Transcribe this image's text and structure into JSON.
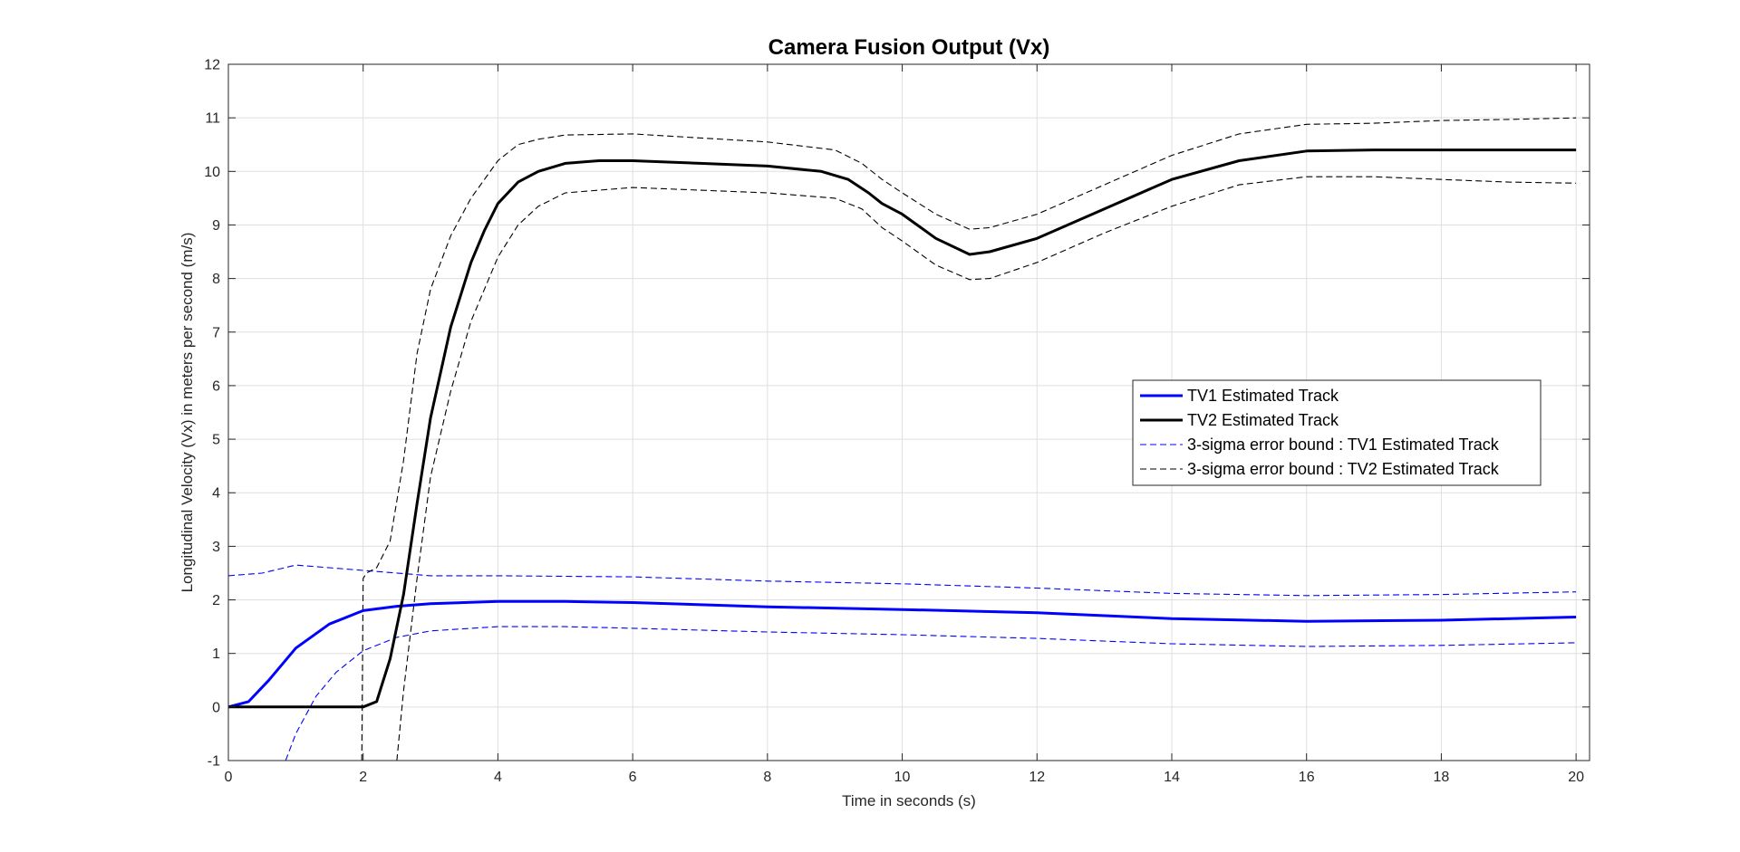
{
  "chart_data": {
    "type": "line",
    "title": "Camera Fusion Output (Vx)",
    "xlabel": "Time in seconds (s)",
    "ylabel": "Longitudinal Velocity (Vx) in meters per second (m/s)",
    "xlim": [
      0,
      20.2
    ],
    "ylim": [
      -1,
      12
    ],
    "xticks": [
      0,
      2,
      4,
      6,
      8,
      10,
      12,
      14,
      16,
      18,
      20
    ],
    "yticks": [
      -1,
      0,
      1,
      2,
      3,
      4,
      5,
      6,
      7,
      8,
      9,
      10,
      11,
      12
    ],
    "grid": true,
    "legend_position": "right-center",
    "series": [
      {
        "name": "TV1 Estimated Track",
        "color": "#0000ff",
        "style": "solid",
        "x": [
          0,
          0.3,
          0.6,
          1.0,
          1.5,
          2.0,
          2.5,
          3.0,
          4.0,
          5.0,
          6.0,
          8.0,
          10.0,
          12.0,
          14.0,
          16.0,
          18.0,
          20.0
        ],
        "values": [
          0,
          0.1,
          0.5,
          1.1,
          1.55,
          1.8,
          1.88,
          1.93,
          1.97,
          1.97,
          1.95,
          1.87,
          1.82,
          1.76,
          1.65,
          1.6,
          1.62,
          1.68
        ]
      },
      {
        "name": "TV2 Estimated Track",
        "color": "#000000",
        "style": "solid",
        "x": [
          0,
          1.5,
          2.0,
          2.2,
          2.4,
          2.6,
          2.8,
          3.0,
          3.3,
          3.6,
          3.8,
          4.0,
          4.3,
          4.6,
          5.0,
          5.5,
          6.0,
          7.0,
          8.0,
          8.8,
          9.2,
          9.5,
          9.7,
          10.0,
          10.5,
          11.0,
          11.3,
          12.0,
          13.0,
          14.0,
          15.0,
          16.0,
          17.0,
          18.0,
          19.0,
          20.0
        ],
        "values": [
          0,
          0,
          0,
          0.1,
          0.9,
          2.1,
          3.8,
          5.4,
          7.1,
          8.3,
          8.9,
          9.4,
          9.8,
          10.0,
          10.15,
          10.2,
          10.2,
          10.15,
          10.1,
          10.0,
          9.85,
          9.6,
          9.4,
          9.2,
          8.75,
          8.45,
          8.5,
          8.75,
          9.3,
          9.85,
          10.2,
          10.38,
          10.4,
          10.4,
          10.4,
          10.4
        ]
      },
      {
        "name": "3-sigma error bound : TV1 Estimated Track",
        "color": "#0000ff",
        "style": "dashed",
        "bounds": [
          {
            "x": [
              0,
              0.5,
              1.0,
              2.0,
              3.0,
              4.0,
              6.0,
              8.0,
              10.0,
              12.0,
              14.0,
              16.0,
              18.0,
              20.0
            ],
            "values": [
              2.45,
              2.5,
              2.65,
              2.55,
              2.45,
              2.45,
              2.43,
              2.35,
              2.3,
              2.22,
              2.12,
              2.08,
              2.1,
              2.15
            ]
          },
          {
            "x": [
              0.85,
              1.0,
              1.3,
              1.6,
              2.0,
              2.5,
              3.0,
              4.0,
              5.0,
              6.0,
              8.0,
              10.0,
              12.0,
              14.0,
              16.0,
              18.0,
              20.0
            ],
            "values": [
              -1.0,
              -0.5,
              0.2,
              0.65,
              1.05,
              1.3,
              1.42,
              1.5,
              1.5,
              1.47,
              1.4,
              1.35,
              1.28,
              1.18,
              1.13,
              1.15,
              1.2
            ]
          }
        ]
      },
      {
        "name": "3-sigma error bound : TV2 Estimated Track",
        "color": "#000000",
        "style": "dashed",
        "bounds": [
          {
            "x": [
              1.98,
              2.0,
              2.05,
              2.2,
              2.4,
              2.6,
              2.8,
              3.0,
              3.3,
              3.6,
              4.0,
              4.3,
              4.6,
              5.0,
              6.0,
              8.0,
              9.0,
              9.4,
              9.7,
              10.0,
              10.5,
              11.0,
              11.3,
              12.0,
              13.0,
              14.0,
              15.0,
              16.0,
              17.0,
              18.0,
              19.0,
              20.0
            ],
            "values": [
              -1.0,
              2.4,
              2.5,
              2.6,
              3.1,
              4.6,
              6.6,
              7.8,
              8.8,
              9.5,
              10.2,
              10.5,
              10.6,
              10.68,
              10.7,
              10.55,
              10.4,
              10.15,
              9.85,
              9.6,
              9.2,
              8.92,
              8.95,
              9.2,
              9.75,
              10.3,
              10.7,
              10.88,
              10.9,
              10.95,
              10.97,
              11.0
            ]
          },
          {
            "x": [
              2.5,
              2.6,
              2.8,
              3.0,
              3.3,
              3.6,
              4.0,
              4.3,
              4.6,
              5.0,
              6.0,
              8.0,
              9.0,
              9.4,
              9.7,
              10.0,
              10.5,
              11.0,
              11.3,
              12.0,
              13.0,
              14.0,
              15.0,
              16.0,
              17.0,
              18.0,
              19.0,
              20.0
            ],
            "values": [
              -1.0,
              0.3,
              2.4,
              4.3,
              5.9,
              7.2,
              8.4,
              9.0,
              9.35,
              9.6,
              9.7,
              9.6,
              9.5,
              9.3,
              8.95,
              8.7,
              8.25,
              7.98,
              8.0,
              8.3,
              8.85,
              9.35,
              9.75,
              9.9,
              9.9,
              9.85,
              9.8,
              9.78
            ]
          }
        ]
      }
    ]
  }
}
